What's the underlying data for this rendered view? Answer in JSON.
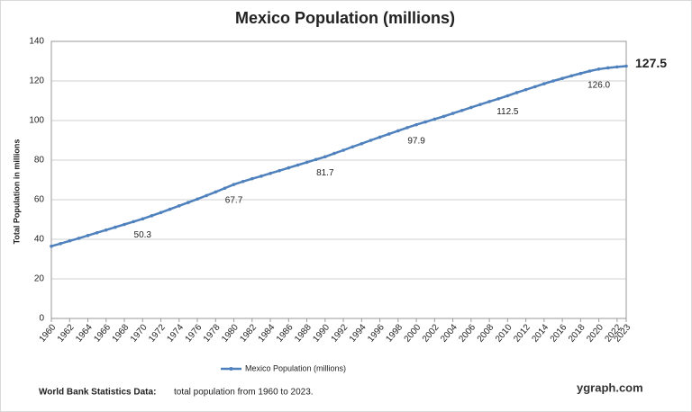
{
  "chart_data": {
    "type": "line",
    "title": "Mexico Population (millions)",
    "y_label": "Total Population  in millions",
    "x": [
      1960,
      1961,
      1962,
      1963,
      1964,
      1965,
      1966,
      1967,
      1968,
      1969,
      1970,
      1971,
      1972,
      1973,
      1974,
      1975,
      1976,
      1977,
      1978,
      1979,
      1980,
      1981,
      1982,
      1983,
      1984,
      1985,
      1986,
      1987,
      1988,
      1989,
      1990,
      1991,
      1992,
      1993,
      1994,
      1995,
      1996,
      1997,
      1998,
      1999,
      2000,
      2001,
      2002,
      2003,
      2004,
      2005,
      2006,
      2007,
      2008,
      2009,
      2010,
      2011,
      2012,
      2013,
      2014,
      2015,
      2016,
      2017,
      2018,
      2019,
      2020,
      2021,
      2022,
      2023
    ],
    "series": [
      {
        "name": "Mexico Population (millions)",
        "color": "#4f81bd",
        "values": [
          36.5,
          37.8,
          39.2,
          40.5,
          41.9,
          43.3,
          44.7,
          46.1,
          47.5,
          48.9,
          50.3,
          51.9,
          53.5,
          55.2,
          56.9,
          58.6,
          60.3,
          62.1,
          63.9,
          65.8,
          67.7,
          69.2,
          70.6,
          71.9,
          73.3,
          74.7,
          76.1,
          77.5,
          78.9,
          80.3,
          81.7,
          83.4,
          85.0,
          86.7,
          88.3,
          90.0,
          91.6,
          93.2,
          94.8,
          96.4,
          97.9,
          99.3,
          100.7,
          102.1,
          103.6,
          105.1,
          106.6,
          108.1,
          109.6,
          111.0,
          112.5,
          114.1,
          115.6,
          117.1,
          118.6,
          120.0,
          121.3,
          122.6,
          123.8,
          125.0,
          126.0,
          126.6,
          127.1,
          127.5
        ],
        "value_labels": [
          null,
          null,
          null,
          null,
          null,
          null,
          null,
          null,
          null,
          null,
          "50.3",
          null,
          null,
          null,
          null,
          null,
          null,
          null,
          null,
          null,
          "67.7",
          null,
          null,
          null,
          null,
          null,
          null,
          null,
          null,
          null,
          "81.7",
          null,
          null,
          null,
          null,
          null,
          null,
          null,
          null,
          null,
          "97.9",
          null,
          null,
          null,
          null,
          null,
          null,
          null,
          null,
          null,
          "112.5",
          null,
          null,
          null,
          null,
          null,
          null,
          null,
          null,
          null,
          "126.0",
          null,
          null,
          "127.5"
        ]
      }
    ],
    "xlim": [
      1960,
      2023
    ],
    "xticks": [
      1960,
      1962,
      1964,
      1966,
      1968,
      1970,
      1972,
      1974,
      1976,
      1978,
      1980,
      1982,
      1984,
      1986,
      1988,
      1990,
      1992,
      1994,
      1996,
      1998,
      2000,
      2002,
      2004,
      2006,
      2008,
      2010,
      2012,
      2014,
      2016,
      2018,
      2020,
      2022,
      2023
    ],
    "ylim": [
      0,
      140
    ],
    "yticks": [
      0,
      20,
      40,
      60,
      80,
      100,
      120,
      140
    ],
    "grid": true,
    "legend": "bottom",
    "source": "World Bank Statistics Data:",
    "note": "total population from 1960 to 2023.",
    "watermark": "ygraph.com"
  }
}
